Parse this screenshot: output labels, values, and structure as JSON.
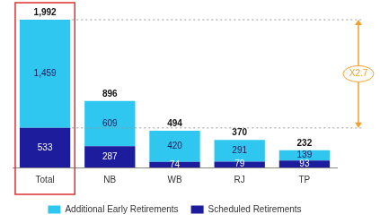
{
  "chart_data": {
    "type": "bar",
    "stacked": true,
    "categories": [
      "Total",
      "NB",
      "WB",
      "RJ",
      "TP"
    ],
    "series": [
      {
        "name": "Scheduled Retirements",
        "color": "#1c1c9c",
        "values": [
          533,
          287,
          74,
          79,
          93
        ],
        "value_labels": [
          "533",
          "287",
          "74",
          "79",
          "93"
        ]
      },
      {
        "name": "Additional Early Retirements",
        "color": "#2fc6ef",
        "values": [
          1459,
          609,
          420,
          291,
          139
        ],
        "value_labels": [
          "1,459",
          "609",
          "420",
          "291",
          "139"
        ]
      }
    ],
    "totals": [
      1992,
      896,
      494,
      370,
      232
    ],
    "total_labels": [
      "1,992",
      "896",
      "494",
      "370",
      "232"
    ],
    "annotations": [
      {
        "text": "X2.7",
        "from": 533,
        "to": 1992
      }
    ],
    "ylim": [
      0,
      1992
    ],
    "grid": false,
    "legend": "bottom",
    "data_labels": true,
    "tick_labels": "x"
  }
}
